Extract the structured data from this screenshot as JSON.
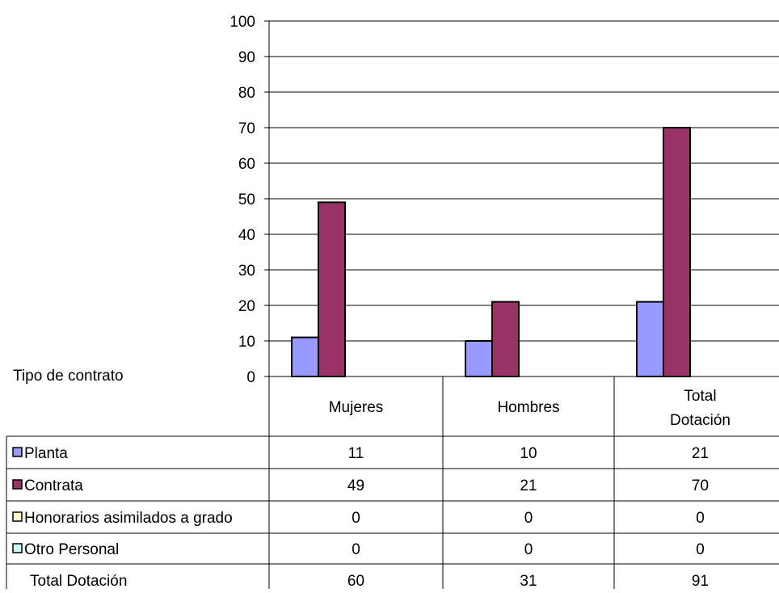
{
  "chart_data": {
    "type": "bar",
    "categories": [
      "Mujeres",
      "Hombres",
      "Total Dotación"
    ],
    "category_lines": [
      [
        "Mujeres"
      ],
      [
        "Hombres"
      ],
      [
        "Total",
        "Dotación"
      ]
    ],
    "series": [
      {
        "name": "Planta",
        "values": [
          11,
          10,
          21
        ],
        "color": "#9999ff"
      },
      {
        "name": "Contrata",
        "values": [
          49,
          21,
          70
        ],
        "color": "#993366"
      },
      {
        "name": "Honorarios asimilados a grado",
        "values": [
          0,
          0,
          0
        ],
        "color": "#ffffcc"
      },
      {
        "name": "Otro Personal",
        "values": [
          0,
          0,
          0
        ],
        "color": "#ccffff"
      }
    ],
    "ylim": [
      0,
      100
    ],
    "yticks": [
      "0",
      "10",
      "20",
      "30",
      "40",
      "50",
      "60",
      "70",
      "80",
      "90",
      "100"
    ],
    "grid": true,
    "legend": "data-table",
    "table_header": "Tipo de contrato",
    "total_row": {
      "label": "Total Dotación",
      "values": [
        60,
        31,
        91
      ]
    }
  }
}
